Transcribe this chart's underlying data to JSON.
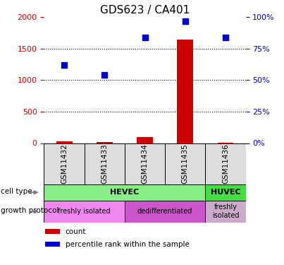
{
  "title": "GDS623 / CA401",
  "samples": [
    "GSM11432",
    "GSM11433",
    "GSM11434",
    "GSM11435",
    "GSM11436"
  ],
  "counts": [
    25,
    15,
    90,
    1650,
    8
  ],
  "percentile_ranks": [
    62,
    54,
    84,
    97,
    84
  ],
  "left_ylim": [
    0,
    2000
  ],
  "left_yticks": [
    0,
    500,
    1000,
    1500,
    2000
  ],
  "left_yticklabels": [
    "0",
    "500",
    "1000",
    "1500",
    "2000"
  ],
  "right_ylim": [
    0,
    100
  ],
  "right_yticks": [
    0,
    25,
    50,
    75,
    100
  ],
  "right_yticklabels": [
    "0%",
    "25%",
    "50%",
    "75%",
    "100%"
  ],
  "bar_color": "#cc0000",
  "dot_color": "#0000cc",
  "left_tick_color": "#cc0000",
  "right_tick_color": "#0000cc",
  "hgrid_at": [
    500,
    1000,
    1500
  ],
  "cell_type_groups": [
    {
      "name": "HEVEC",
      "span": [
        0,
        3
      ],
      "color": "#88ee88"
    },
    {
      "name": "HUVEC",
      "span": [
        4,
        4
      ],
      "color": "#44dd44"
    }
  ],
  "growth_protocol_groups": [
    {
      "name": "freshly isolated",
      "span": [
        0,
        1
      ],
      "color": "#ee88ee"
    },
    {
      "name": "dedifferentiated",
      "span": [
        2,
        3
      ],
      "color": "#cc55cc"
    },
    {
      "name": "freshly\nisolated",
      "span": [
        4,
        4
      ],
      "color": "#ccaacc"
    }
  ],
  "legend_items": [
    {
      "color": "#cc0000",
      "label": "count"
    },
    {
      "color": "#0000cc",
      "label": "percentile rank within the sample"
    }
  ],
  "n_samples": 5,
  "bar_width": 0.4
}
